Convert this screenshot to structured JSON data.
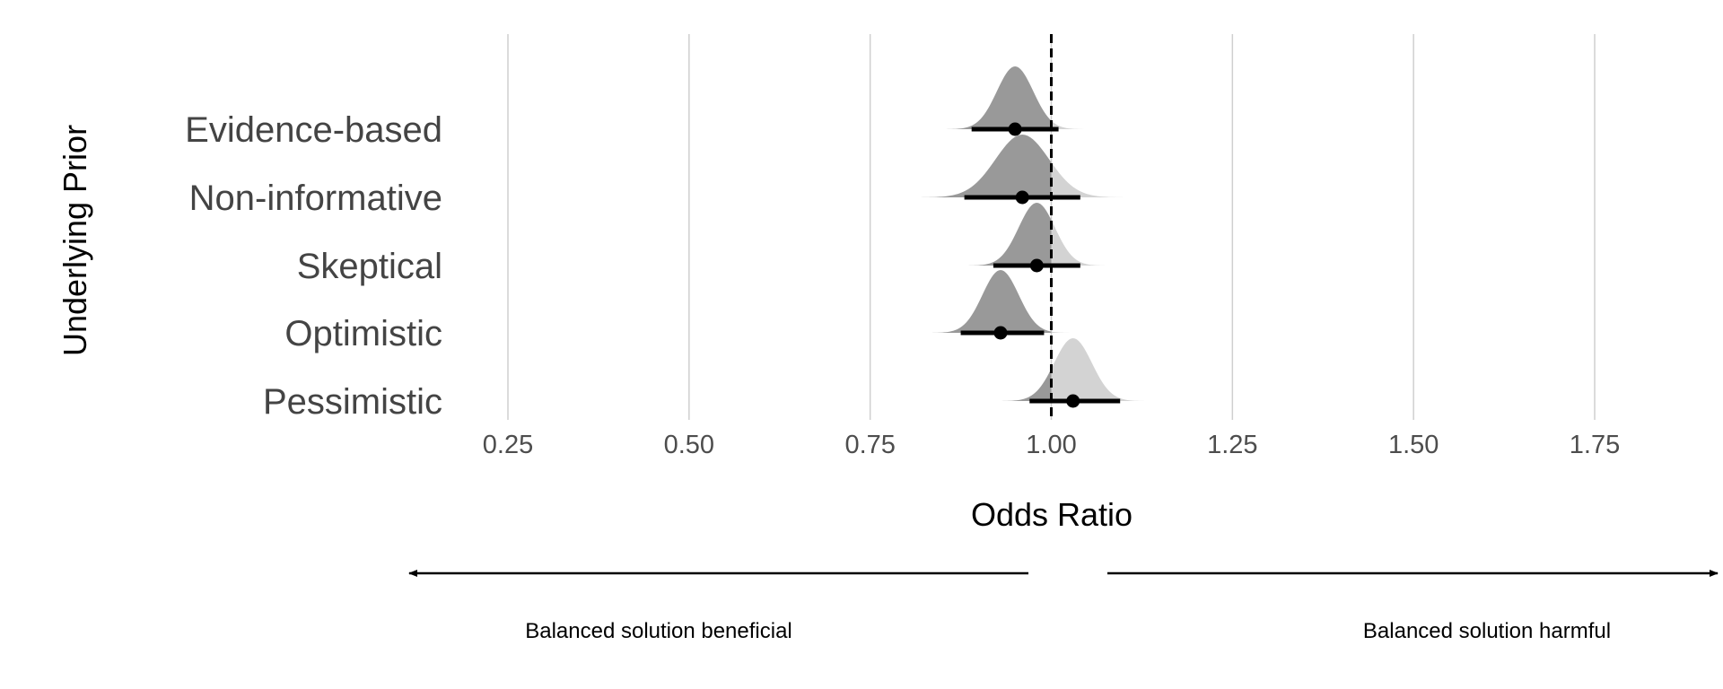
{
  "chart_data": {
    "type": "density-interval",
    "ylabel": "Underlying Prior",
    "xlabel": "Odds Ratio",
    "xlim": [
      0.24,
      1.93
    ],
    "xticks": [
      0.25,
      0.5,
      0.75,
      1.0,
      1.25,
      1.5,
      1.75
    ],
    "xtick_labels": [
      "0.25",
      "0.50",
      "0.75",
      "1.00",
      "1.25",
      "1.50",
      "1.75"
    ],
    "reference_line": 1.0,
    "grid": "vertical",
    "categories": [
      "Evidence-based",
      "Non-informative",
      "Skeptical",
      "Optimistic",
      "Pessimistic"
    ],
    "series": [
      {
        "category": "Evidence-based",
        "point": 0.95,
        "interval": [
          0.89,
          1.01
        ],
        "sd": 0.025
      },
      {
        "category": "Non-informative",
        "point": 0.96,
        "interval": [
          0.88,
          1.04
        ],
        "sd": 0.037
      },
      {
        "category": "Skeptical",
        "point": 0.98,
        "interval": [
          0.92,
          1.04
        ],
        "sd": 0.025
      },
      {
        "category": "Optimistic",
        "point": 0.93,
        "interval": [
          0.875,
          0.99
        ],
        "sd": 0.025
      },
      {
        "category": "Pessimistic",
        "point": 1.03,
        "interval": [
          0.97,
          1.095
        ],
        "sd": 0.026
      }
    ],
    "fill_below_reference": "#999999",
    "fill_above_reference": "#d3d3d3",
    "annotations": {
      "left": "Balanced solution beneficial",
      "right": "Balanced solution harmful"
    }
  }
}
